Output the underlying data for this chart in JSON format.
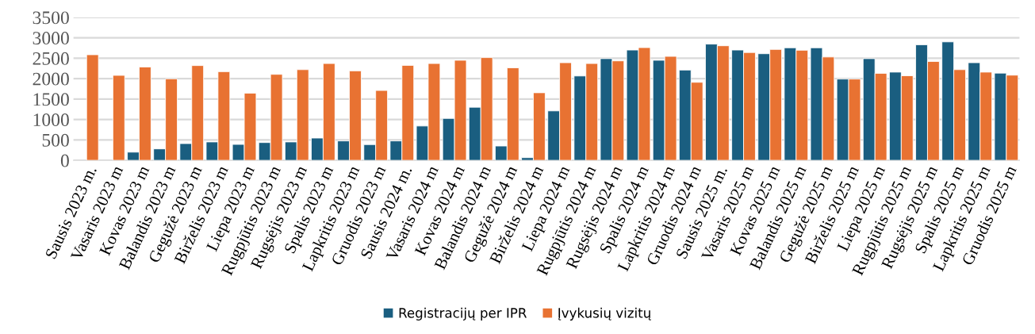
{
  "chart_data": {
    "type": "bar",
    "categories": [
      "Sausis 2023 m.",
      "Vasaris 2023 m",
      "Kovas 2023 m",
      "Balandis 2023 m",
      "Gegužė 2023 m",
      "Birželis 2023 m",
      "Liepa 2023 m",
      "Rugpjūtis 2023 m",
      "Rugsėjis 2023 m",
      "Spalis 2023 m",
      "Lapkritis 2023 m",
      "Gruodis 2023 m",
      "Sausis 2024 m.",
      "Vasaris 2024 m",
      "Kovas 2024 m",
      "Balandis 2024 m",
      "Gegužė 2024 m",
      "Birželis 2024 m",
      "Liepa 2024 m",
      "Rugpjūtis 2024 m",
      "Rugsėjis 2024 m",
      "Spalis 2024 m",
      "Lapkritis 2024 m",
      "Gruodis 2024 m",
      "Sausis 2025 m.",
      "Vasaris 2025 m",
      "Kovas 2025 m",
      "Balandis 2025 m",
      "Gegužė 2025 m",
      "Birželis 2025 m",
      "Liepa 2025 m",
      "Rugpjūtis 2025 m",
      "Rugsėjis 2025 m",
      "Spalis 2025 m",
      "Lapkritis 2025 m",
      "Gruodis 2025 m"
    ],
    "series": [
      {
        "name": "Registracijų per IPR",
        "color": "#1a5e80",
        "values": [
          null,
          null,
          200,
          280,
          410,
          450,
          390,
          435,
          450,
          545,
          475,
          385,
          475,
          840,
          1025,
          1300,
          350,
          65,
          1210,
          2065,
          2490,
          2700,
          2450,
          2210,
          2845,
          2700,
          2610,
          2755,
          2755,
          1990,
          2490,
          2160,
          2830,
          2900,
          2390,
          2135
        ]
      },
      {
        "name": "Įvykusių vizitų",
        "color": "#e87232",
        "values": [
          2585,
          2080,
          2285,
          1995,
          2320,
          2170,
          1645,
          2105,
          2220,
          2370,
          2190,
          1710,
          2325,
          2370,
          2450,
          2515,
          2265,
          1655,
          2390,
          2370,
          2435,
          2760,
          2545,
          1910,
          2805,
          2640,
          2715,
          2695,
          2530,
          1990,
          2130,
          2070,
          2420,
          2220,
          2160,
          2085
        ]
      }
    ],
    "ylim": [
      0,
      3500
    ],
    "yticks": [
      0,
      500,
      1000,
      1500,
      2000,
      2500,
      3000,
      3500
    ],
    "grid": "y",
    "legend": "bottom"
  }
}
